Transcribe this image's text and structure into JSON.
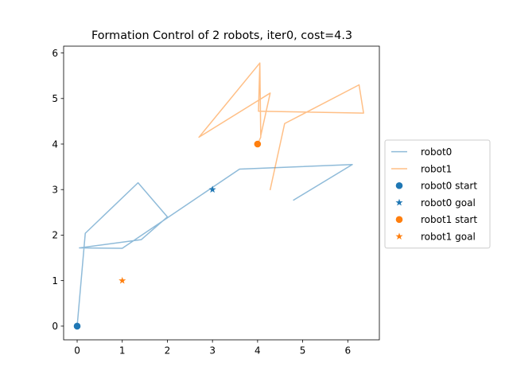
{
  "chart_data": {
    "type": "line",
    "title": "Formation Control of 2 robots, iter0, cost=4.3",
    "xlabel": "",
    "ylabel": "",
    "xlim": [
      -0.3,
      6.7
    ],
    "ylim": [
      -0.3,
      6.15
    ],
    "xticks": [
      0,
      1,
      2,
      3,
      4,
      5,
      6
    ],
    "yticks": [
      0,
      1,
      2,
      3,
      4,
      5,
      6
    ],
    "grid": false,
    "legend_position": "center right, outside plot",
    "series": [
      {
        "name": "robot0",
        "kind": "line",
        "color": "#1f77b4",
        "opacity": 0.5,
        "points": [
          [
            0,
            0
          ],
          [
            0.18,
            2.04
          ],
          [
            1.35,
            3.15
          ],
          [
            2.0,
            2.4
          ],
          [
            1.42,
            1.9
          ],
          [
            0.05,
            1.72
          ],
          [
            1.0,
            1.71
          ],
          [
            3.6,
            3.45
          ],
          [
            6.1,
            3.55
          ],
          [
            4.8,
            2.77
          ]
        ]
      },
      {
        "name": "robot1",
        "kind": "line",
        "color": "#ff7f0e",
        "opacity": 0.5,
        "points": [
          [
            4.0,
            4.0
          ],
          [
            4.07,
            4.15
          ],
          [
            4.05,
            5.78
          ],
          [
            4.07,
            4.18
          ],
          [
            4.28,
            5.12
          ],
          [
            2.7,
            4.15
          ],
          [
            4.05,
            5.78
          ],
          [
            4.02,
            4.72
          ],
          [
            6.35,
            4.68
          ],
          [
            6.25,
            5.3
          ],
          [
            4.6,
            4.45
          ],
          [
            4.28,
            3.0
          ]
        ]
      },
      {
        "name": "robot0 start",
        "kind": "marker",
        "marker": "circle",
        "color": "#1f77b4",
        "points": [
          [
            0,
            0
          ]
        ]
      },
      {
        "name": "robot0 goal",
        "kind": "marker",
        "marker": "star",
        "color": "#1f77b4",
        "points": [
          [
            3,
            3
          ]
        ]
      },
      {
        "name": "robot1 start",
        "kind": "marker",
        "marker": "circle",
        "color": "#ff7f0e",
        "points": [
          [
            4,
            4
          ]
        ]
      },
      {
        "name": "robot1 goal",
        "kind": "marker",
        "marker": "star",
        "color": "#ff7f0e",
        "points": [
          [
            1,
            1
          ]
        ]
      }
    ]
  }
}
